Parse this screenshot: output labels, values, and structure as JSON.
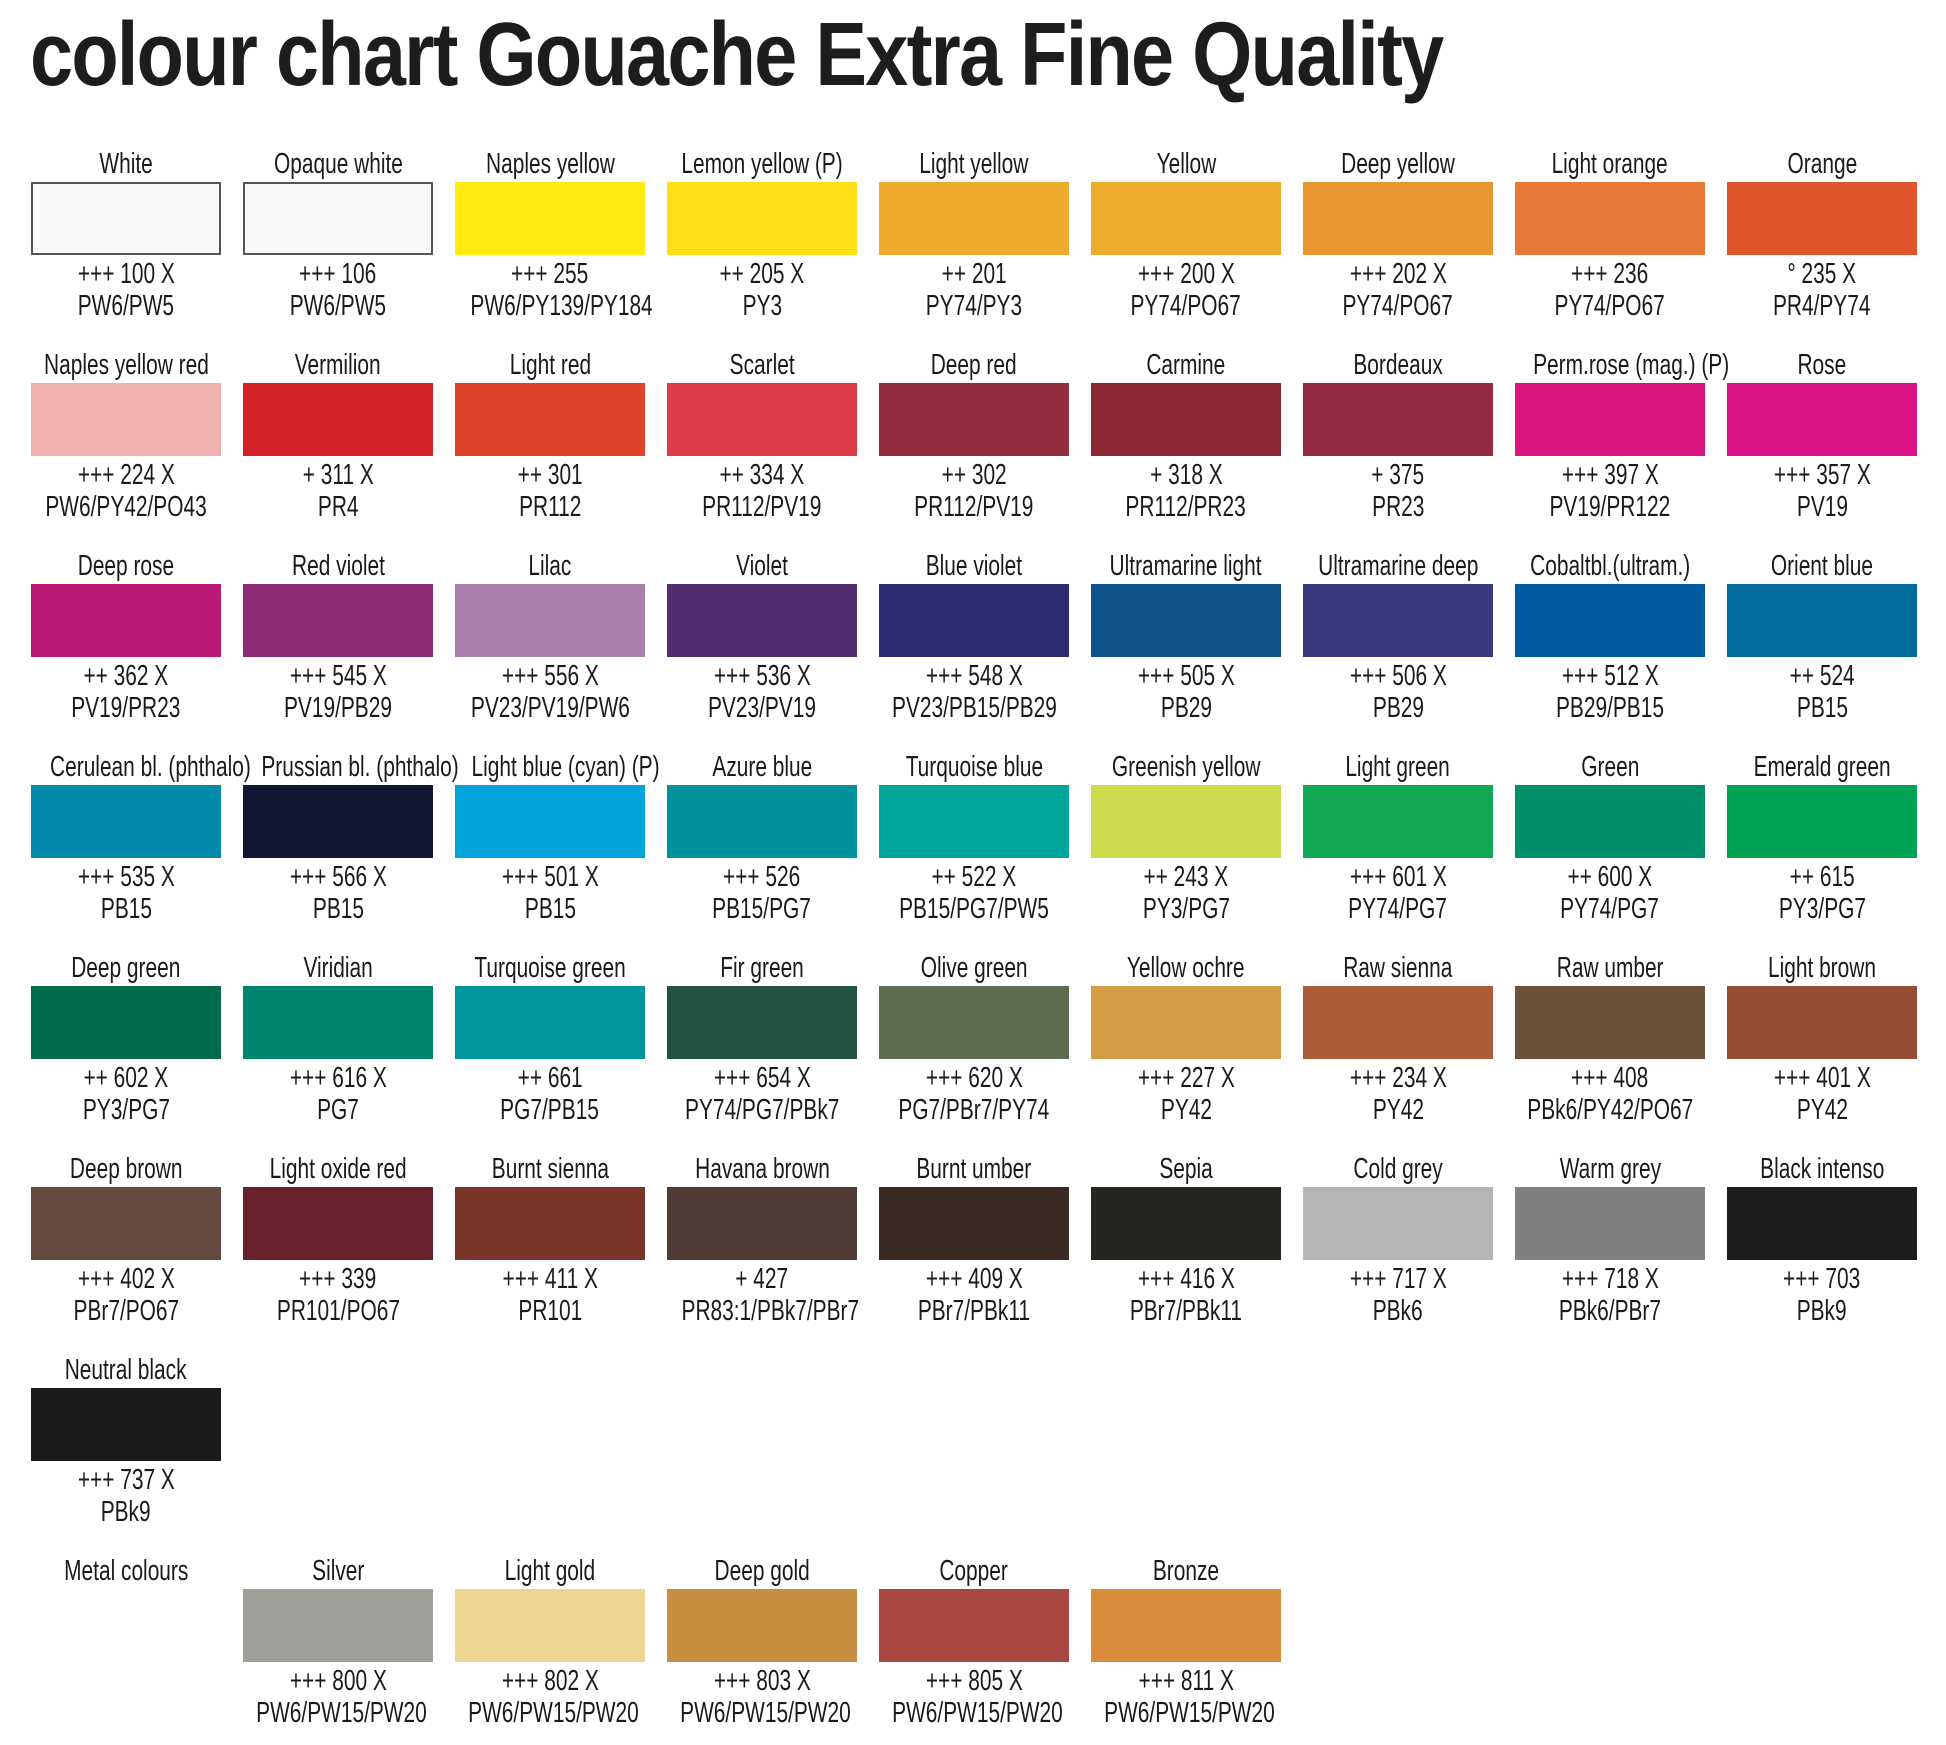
{
  "title": "colour chart Gouache Extra Fine Quality",
  "rows": [
    [
      {
        "name": "White",
        "code": "+++ 100 X",
        "pigments": "PW6/PW5",
        "color": "#fbf9f9",
        "border": true
      },
      {
        "name": "Opaque white",
        "code": "+++ 106",
        "pigments": "PW6/PW5",
        "color": "#faf8f8",
        "border": true
      },
      {
        "name": "Naples yellow",
        "code": "+++ 255",
        "pigments": "PW6/PY139/PY184",
        "color": "#ffeb0f"
      },
      {
        "name": "Lemon yellow (P)",
        "code": "++ 205 X",
        "pigments": "PY3",
        "color": "#ffe016"
      },
      {
        "name": "Light yellow",
        "code": "++ 201",
        "pigments": "PY74/PY3",
        "color": "#edaa2d"
      },
      {
        "name": "Yellow",
        "code": "+++ 200 X",
        "pigments": "PY74/PO67",
        "color": "#eeac2c"
      },
      {
        "name": "Deep yellow",
        "code": "+++ 202 X",
        "pigments": "PY74/PO67",
        "color": "#e8962f"
      },
      {
        "name": "Light orange",
        "code": "+++ 236",
        "pigments": "PY74/PO67",
        "color": "#e67936"
      },
      {
        "name": "Orange",
        "code": "° 235 X",
        "pigments": "PR4/PY74",
        "color": "#df552c"
      }
    ],
    [
      {
        "name": "Naples yellow red",
        "code": "+++ 224 X",
        "pigments": "PW6/PY42/PO43",
        "color": "#f0b0ae"
      },
      {
        "name": "Vermilion",
        "code": "+ 311 X",
        "pigments": "PR4",
        "color": "#d42229"
      },
      {
        "name": "Light red",
        "code": "++ 301",
        "pigments": "PR112",
        "color": "#de442b"
      },
      {
        "name": "Scarlet",
        "code": "++ 334 X",
        "pigments": "PR112/PV19",
        "color": "#dd3d48"
      },
      {
        "name": "Deep red",
        "code": "++ 302",
        "pigments": "PR112/PV19",
        "color": "#912d3d"
      },
      {
        "name": "Carmine",
        "code": "+ 318 X",
        "pigments": "PR112/PR23",
        "color": "#8b2735"
      },
      {
        "name": "Bordeaux",
        "code": "+ 375",
        "pigments": "PR23",
        "color": "#932a42"
      },
      {
        "name": "Perm.rose (mag.) (P)",
        "code": "+++ 397 X",
        "pigments": "PV19/PR122",
        "color": "#da1580"
      },
      {
        "name": "Rose",
        "code": "+++ 357 X",
        "pigments": "PV19",
        "color": "#db1386"
      }
    ],
    [
      {
        "name": "Deep rose",
        "code": "++ 362 X",
        "pigments": "PV19/PR23",
        "color": "#b91b77"
      },
      {
        "name": "Red violet",
        "code": "+++ 545 X",
        "pigments": "PV19/PB29",
        "color": "#8d2a77"
      },
      {
        "name": "Lilac",
        "code": "+++ 556 X",
        "pigments": "PV23/PV19/PW6",
        "color": "#a97da9"
      },
      {
        "name": "Violet",
        "code": "+++ 536 X",
        "pigments": "PV23/PV19",
        "color": "#512c6f"
      },
      {
        "name": "Blue violet",
        "code": "+++ 548 X",
        "pigments": "PV23/PB15/PB29",
        "color": "#2b2c74"
      },
      {
        "name": "Ultramarine light",
        "code": "+++ 505 X",
        "pigments": "PB29",
        "color": "#0d5288"
      },
      {
        "name": "Ultramarine deep",
        "code": "+++ 506 X",
        "pigments": "PB29",
        "color": "#37387e"
      },
      {
        "name": "Cobaltbl.(ultram.)",
        "code": "+++ 512 X",
        "pigments": "PB29/PB15",
        "color": "#005ba0"
      },
      {
        "name": "Orient blue",
        "code": "++ 524",
        "pigments": "PB15",
        "color": "#026c9c"
      }
    ],
    [
      {
        "name": "Cerulean bl. (phthalo)",
        "code": "+++ 535 X",
        "pigments": "PB15",
        "color": "#0089aa"
      },
      {
        "name": "Prussian bl. (phthalo)",
        "code": "+++ 566 X",
        "pigments": "PB15",
        "color": "#111733"
      },
      {
        "name": "Light blue (cyan) (P)",
        "code": "+++ 501 X",
        "pigments": "PB15",
        "color": "#01a5dc"
      },
      {
        "name": "Azure blue",
        "code": "+++ 526",
        "pigments": "PB15/PG7",
        "color": "#00929c"
      },
      {
        "name": "Turquoise blue",
        "code": "++ 522 X",
        "pigments": "PB15/PG7/PW5",
        "color": "#00a59b"
      },
      {
        "name": "Greenish yellow",
        "code": "++ 243 X",
        "pigments": "PY3/PG7",
        "color": "#cddb4d"
      },
      {
        "name": "Light green",
        "code": "+++ 601 X",
        "pigments": "PY74/PG7",
        "color": "#12a856"
      },
      {
        "name": "Green",
        "code": "++ 600 X",
        "pigments": "PY74/PG7",
        "color": "#008f6b"
      },
      {
        "name": "Emerald green",
        "code": "++ 615",
        "pigments": "PY3/PG7",
        "color": "#00a253"
      }
    ],
    [
      {
        "name": "Deep green",
        "code": "++ 602 X",
        "pigments": "PY3/PG7",
        "color": "#006c4b"
      },
      {
        "name": "Viridian",
        "code": "+++ 616 X",
        "pigments": "PG7",
        "color": "#00866e"
      },
      {
        "name": "Turquoise green",
        "code": "++ 661",
        "pigments": "PG7/PB15",
        "color": "#00979c"
      },
      {
        "name": "Fir green",
        "code": "+++ 654 X",
        "pigments": "PY74/PG7/PBk7",
        "color": "#225242"
      },
      {
        "name": "Olive green",
        "code": "+++ 620 X",
        "pigments": "PG7/PBr7/PY74",
        "color": "#5e6d4f"
      },
      {
        "name": "Yellow ochre",
        "code": "+++ 227 X",
        "pigments": "PY42",
        "color": "#d39d46"
      },
      {
        "name": "Raw sienna",
        "code": "+++ 234 X",
        "pigments": "PY42",
        "color": "#ad5c3a"
      },
      {
        "name": "Raw umber",
        "code": "+++ 408",
        "pigments": "PBk6/PY42/PO67",
        "color": "#6c523b"
      },
      {
        "name": "Light brown",
        "code": "+++ 401 X",
        "pigments": "PY42",
        "color": "#964f35"
      }
    ],
    [
      {
        "name": "Deep brown",
        "code": "+++ 402 X",
        "pigments": "PBr7/PO67",
        "color": "#644a3f"
      },
      {
        "name": "Light oxide red",
        "code": "+++ 339",
        "pigments": "PR101/PO67",
        "color": "#67232c"
      },
      {
        "name": "Burnt sienna",
        "code": "+++ 411 X",
        "pigments": "PR101",
        "color": "#7a3428"
      },
      {
        "name": "Havana brown",
        "code": "+ 427",
        "pigments": "PR83:1/PBk7/PBr7",
        "color": "#503a34"
      },
      {
        "name": "Burnt umber",
        "code": "+++ 409 X",
        "pigments": "PBr7/PBk11",
        "color": "#3a2a21"
      },
      {
        "name": "Sepia",
        "code": "+++ 416 X",
        "pigments": "PBr7/PBk11",
        "color": "#262520"
      },
      {
        "name": "Cold grey",
        "code": "+++ 717 X",
        "pigments": "PBk6",
        "color": "#b5b5b3"
      },
      {
        "name": "Warm grey",
        "code": "+++ 718 X",
        "pigments": "PBk6/PBr7",
        "color": "#7f7f7f"
      },
      {
        "name": "Black intenso",
        "code": "+++ 703",
        "pigments": "PBk9",
        "color": "#1c1b1d"
      }
    ],
    [
      {
        "name": "Neutral black",
        "code": "+++ 737 X",
        "pigments": "PBk9",
        "color": "#1c1a1b"
      }
    ]
  ],
  "metal": {
    "label": "Metal colours",
    "items": [
      {
        "name": "Silver",
        "code": "+++ 800 X",
        "pigments": "PW6/PW15/PW20",
        "color": "#9c9f98"
      },
      {
        "name": "Light gold",
        "code": "+++ 802 X",
        "pigments": "PW6/PW15/PW20",
        "color": "#edd68f"
      },
      {
        "name": "Deep gold",
        "code": "+++ 803 X",
        "pigments": "PW6/PW15/PW20",
        "color": "#c78d40"
      },
      {
        "name": "Copper",
        "code": "+++ 805 X",
        "pigments": "PW6/PW15/PW20",
        "color": "#a84841"
      },
      {
        "name": "Bronze",
        "code": "+++ 811 X",
        "pigments": "PW6/PW15/PW20",
        "color": "#d98c3c"
      }
    ]
  }
}
